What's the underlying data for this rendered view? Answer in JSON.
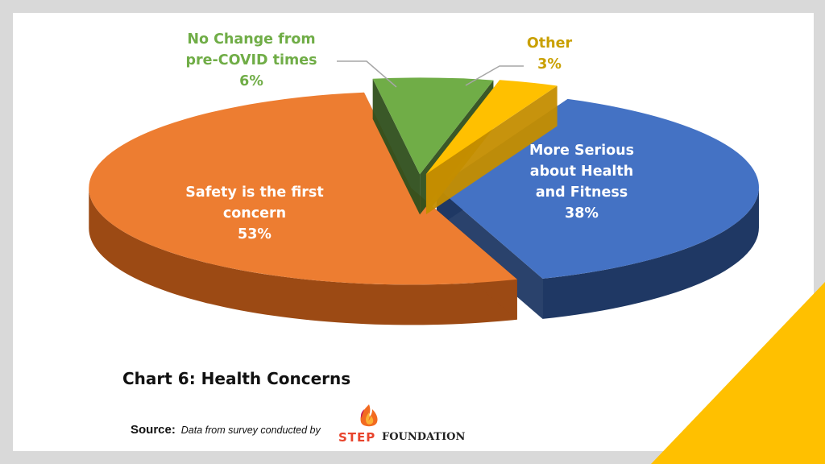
{
  "chart_data": {
    "type": "pie",
    "title": "Chart 6: Health Concerns",
    "slices": [
      {
        "label_lines": [
          "More Serious",
          "about Health",
          "and Fitness"
        ],
        "label": "More Serious about Health and Fitness",
        "value": 38,
        "value_label": "38%",
        "color": "#4472c4",
        "side_color": "#1f3864"
      },
      {
        "label_lines": [
          "Safety is the first",
          "concern"
        ],
        "label": "Safety is the first concern",
        "value": 53,
        "value_label": "53%",
        "color": "#ed7d31",
        "side_color": "#9c4a14"
      },
      {
        "label_lines": [
          "No Change from",
          "pre-COVID times"
        ],
        "label": "No Change from pre-COVID times",
        "value": 6,
        "value_label": "6%",
        "color": "#70ad47",
        "side_color": "#2f4f1c"
      },
      {
        "label_lines": [
          "Other"
        ],
        "label": "Other",
        "value": 3,
        "value_label": "3%",
        "color": "#ffc000",
        "side_color": "#c48d00"
      }
    ],
    "label_colors": {
      "inside": "#ffffff",
      "no_change": "#70ad47",
      "other": "#c9a000"
    },
    "style": "3d-exploded"
  },
  "caption": "Chart 6: Health Concerns",
  "source": {
    "label": "Source:",
    "text": "Data from survey conducted by",
    "logo_text_step": "STEP",
    "logo_text_foundation": "FOUNDATION"
  },
  "colors": {
    "background": "#d9d9d9",
    "slide": "#ffffff",
    "accent_triangle": "#ffc000"
  }
}
